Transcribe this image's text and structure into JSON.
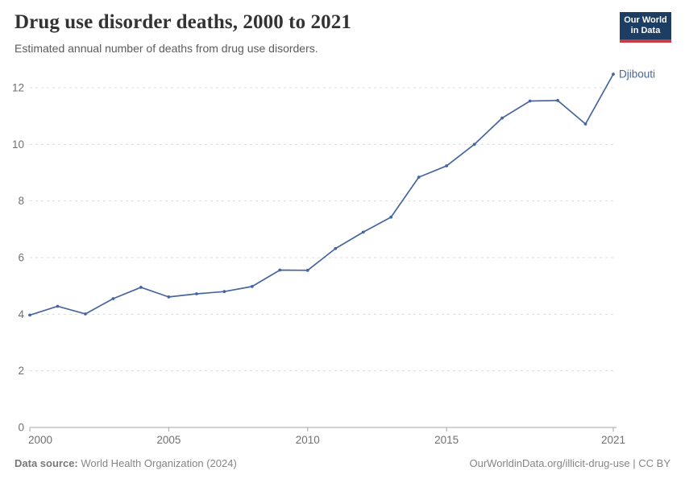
{
  "header": {
    "title": "Drug use disorder deaths, 2000 to 2021",
    "subtitle": "Estimated annual number of deaths from drug use disorders.",
    "logo": {
      "line1": "Our World",
      "line2": "in Data",
      "bg_color": "#1d3d63",
      "bar_color": "#c93c45"
    }
  },
  "chart_data": {
    "type": "line",
    "title": "Drug use disorder deaths, 2000 to 2021",
    "subtitle": "Estimated annual number of deaths from drug use disorders.",
    "xlabel": "",
    "ylabel": "",
    "x": [
      2000,
      2001,
      2002,
      2003,
      2004,
      2005,
      2006,
      2007,
      2008,
      2009,
      2010,
      2011,
      2012,
      2013,
      2014,
      2015,
      2016,
      2017,
      2018,
      2019,
      2020,
      2021
    ],
    "series": [
      {
        "name": "Djibouti",
        "color": "#4666a0",
        "values": [
          3.97,
          4.28,
          4.01,
          4.55,
          4.95,
          4.61,
          4.72,
          4.8,
          4.98,
          5.56,
          5.55,
          6.32,
          6.9,
          7.43,
          8.84,
          9.24,
          10.0,
          10.93,
          11.53,
          11.55,
          10.72,
          12.48
        ]
      }
    ],
    "x_ticks": [
      2000,
      2005,
      2010,
      2015,
      2021
    ],
    "y_ticks": [
      0,
      2,
      4,
      6,
      8,
      10,
      12
    ],
    "xlim": [
      2000,
      2021
    ],
    "ylim": [
      0,
      12.6
    ],
    "grid": "horizontal-dashed",
    "legend": "end-of-line-label",
    "axis_color": "#a5a5a5",
    "grid_color": "#dcdcdc",
    "tick_label_color": "#707070"
  },
  "footer": {
    "source_label": "Data source:",
    "source_text": " World Health Organization (2024)",
    "rights": "OurWorldinData.org/illicit-drug-use | CC BY"
  }
}
